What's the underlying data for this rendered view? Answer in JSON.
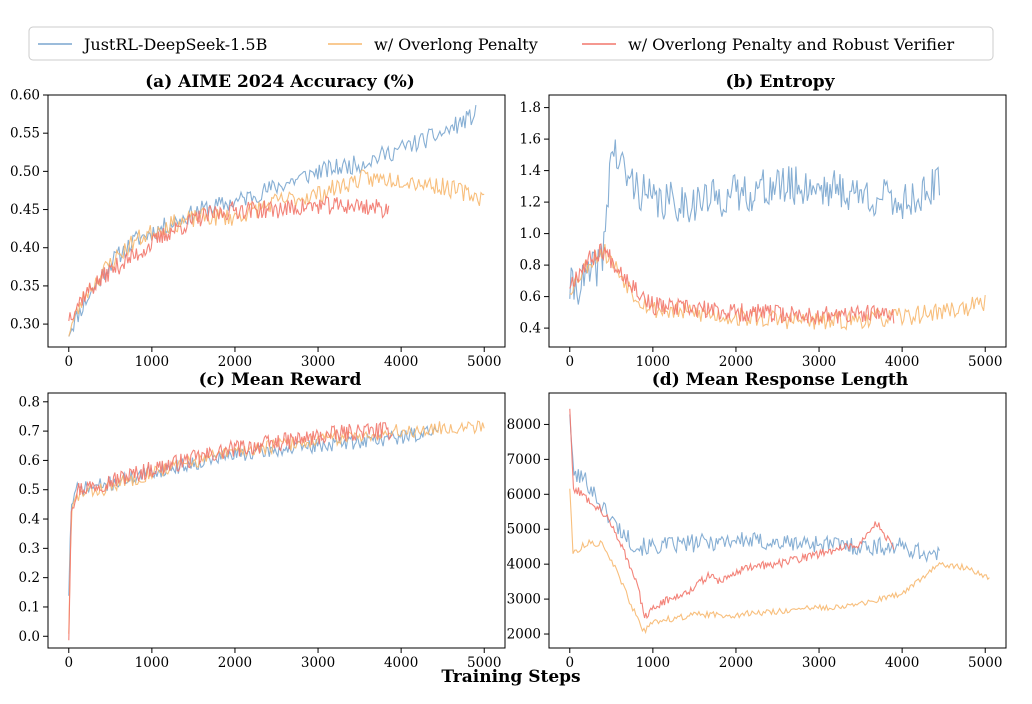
{
  "legend": [
    {
      "label": "JustRL-DeepSeek-1.5B",
      "color": "#7aa6cf"
    },
    {
      "label": "w/ Overlong Penalty",
      "color": "#f7b86f"
    },
    {
      "label": "w/ Overlong Penalty and Robust Verifier",
      "color": "#f2776b"
    }
  ],
  "xlabel": "Training Steps",
  "chart_data": [
    {
      "type": "line",
      "title": "(a) AIME 2024 Accuracy (%)",
      "xlim": [
        -250,
        5250
      ],
      "ylim": [
        0.27,
        0.6
      ],
      "xticks": [
        0,
        1000,
        2000,
        3000,
        4000,
        5000
      ],
      "yticks": [
        0.3,
        0.35,
        0.4,
        0.45,
        0.5,
        0.55,
        0.6
      ],
      "ydecimals": 2,
      "series": [
        {
          "name": "JustRL-DeepSeek-1.5B",
          "color": "#7aa6cf",
          "noise": 0.012,
          "seed": 11,
          "points": [
            [
              0,
              0.29
            ],
            [
              200,
              0.33
            ],
            [
              500,
              0.38
            ],
            [
              800,
              0.41
            ],
            [
              1200,
              0.43
            ],
            [
              1600,
              0.45
            ],
            [
              2000,
              0.46
            ],
            [
              2500,
              0.48
            ],
            [
              3000,
              0.5
            ],
            [
              3500,
              0.51
            ],
            [
              4000,
              0.53
            ],
            [
              4500,
              0.55
            ],
            [
              4900,
              0.575
            ]
          ]
        },
        {
          "name": "w/ Overlong Penalty",
          "color": "#f7b86f",
          "noise": 0.012,
          "seed": 23,
          "points": [
            [
              0,
              0.29
            ],
            [
              200,
              0.34
            ],
            [
              500,
              0.38
            ],
            [
              800,
              0.41
            ],
            [
              1200,
              0.43
            ],
            [
              1600,
              0.44
            ],
            [
              2000,
              0.44
            ],
            [
              2500,
              0.46
            ],
            [
              3000,
              0.47
            ],
            [
              3500,
              0.49
            ],
            [
              4000,
              0.49
            ],
            [
              4500,
              0.48
            ],
            [
              5000,
              0.465
            ]
          ]
        },
        {
          "name": "w/ Overlong Penalty and Robust Verifier",
          "color": "#f2776b",
          "noise": 0.012,
          "seed": 37,
          "points": [
            [
              0,
              0.31
            ],
            [
              200,
              0.34
            ],
            [
              500,
              0.37
            ],
            [
              800,
              0.39
            ],
            [
              1200,
              0.42
            ],
            [
              1600,
              0.44
            ],
            [
              2000,
              0.45
            ],
            [
              2500,
              0.45
            ],
            [
              3000,
              0.455
            ],
            [
              3500,
              0.455
            ],
            [
              3850,
              0.45
            ]
          ]
        }
      ]
    },
    {
      "type": "line",
      "title": "(b) Entropy",
      "xlim": [
        -250,
        5250
      ],
      "ylim": [
        0.28,
        1.88
      ],
      "xticks": [
        0,
        1000,
        2000,
        3000,
        4000,
        5000
      ],
      "yticks": [
        0.4,
        0.6,
        0.8,
        1.0,
        1.2,
        1.4,
        1.6,
        1.8
      ],
      "ydecimals": 1,
      "series": [
        {
          "name": "JustRL-DeepSeek-1.5B",
          "color": "#7aa6cf",
          "noise": 0.13,
          "seed": 41,
          "points": [
            [
              0,
              0.65
            ],
            [
              200,
              0.7
            ],
            [
              400,
              0.85
            ],
            [
              500,
              1.55
            ],
            [
              700,
              1.35
            ],
            [
              1000,
              1.2
            ],
            [
              1500,
              1.2
            ],
            [
              2000,
              1.25
            ],
            [
              2500,
              1.3
            ],
            [
              3000,
              1.3
            ],
            [
              3500,
              1.25
            ],
            [
              4000,
              1.2
            ],
            [
              4450,
              1.3
            ]
          ]
        },
        {
          "name": "w/ Overlong Penalty",
          "color": "#f7b86f",
          "noise": 0.06,
          "seed": 53,
          "points": [
            [
              0,
              0.65
            ],
            [
              200,
              0.8
            ],
            [
              400,
              0.9
            ],
            [
              800,
              0.6
            ],
            [
              1000,
              0.52
            ],
            [
              2000,
              0.47
            ],
            [
              3000,
              0.44
            ],
            [
              4000,
              0.47
            ],
            [
              5000,
              0.55
            ]
          ]
        },
        {
          "name": "w/ Overlong Penalty and Robust Verifier",
          "color": "#f2776b",
          "noise": 0.06,
          "seed": 67,
          "points": [
            [
              0,
              0.68
            ],
            [
              200,
              0.82
            ],
            [
              400,
              0.9
            ],
            [
              800,
              0.65
            ],
            [
              1000,
              0.54
            ],
            [
              2000,
              0.5
            ],
            [
              3000,
              0.48
            ],
            [
              3900,
              0.49
            ]
          ]
        }
      ]
    },
    {
      "type": "line",
      "title": "(c) Mean Reward",
      "xlim": [
        -250,
        5250
      ],
      "ylim": [
        -0.04,
        0.83
      ],
      "xticks": [
        0,
        1000,
        2000,
        3000,
        4000,
        5000
      ],
      "yticks": [
        0.0,
        0.1,
        0.2,
        0.3,
        0.4,
        0.5,
        0.6,
        0.7,
        0.8
      ],
      "ydecimals": 1,
      "series": [
        {
          "name": "JustRL-DeepSeek-1.5B",
          "color": "#7aa6cf",
          "noise": 0.025,
          "seed": 71,
          "points": [
            [
              0,
              0.15
            ],
            [
              30,
              0.45
            ],
            [
              100,
              0.5
            ],
            [
              500,
              0.52
            ],
            [
              1000,
              0.56
            ],
            [
              1500,
              0.59
            ],
            [
              2000,
              0.62
            ],
            [
              3000,
              0.65
            ],
            [
              4000,
              0.68
            ],
            [
              4450,
              0.7
            ]
          ]
        },
        {
          "name": "w/ Overlong Penalty",
          "color": "#f7b86f",
          "noise": 0.025,
          "seed": 83,
          "points": [
            [
              0,
              0.02
            ],
            [
              30,
              0.42
            ],
            [
              100,
              0.48
            ],
            [
              500,
              0.51
            ],
            [
              1000,
              0.56
            ],
            [
              2000,
              0.63
            ],
            [
              3000,
              0.67
            ],
            [
              4000,
              0.7
            ],
            [
              5000,
              0.72
            ]
          ]
        },
        {
          "name": "w/ Overlong Penalty and Robust Verifier",
          "color": "#f2776b",
          "noise": 0.03,
          "seed": 97,
          "points": [
            [
              0,
              0.0
            ],
            [
              30,
              0.44
            ],
            [
              100,
              0.5
            ],
            [
              500,
              0.53
            ],
            [
              1000,
              0.57
            ],
            [
              2000,
              0.64
            ],
            [
              3000,
              0.68
            ],
            [
              3500,
              0.7
            ],
            [
              3900,
              0.7
            ]
          ]
        }
      ]
    },
    {
      "type": "line",
      "title": "(d) Mean Response Length",
      "xlim": [
        -250,
        5250
      ],
      "ylim": [
        1600,
        8900
      ],
      "xticks": [
        0,
        1000,
        2000,
        3000,
        4000,
        5000
      ],
      "yticks": [
        2000,
        3000,
        4000,
        5000,
        6000,
        7000,
        8000
      ],
      "ydecimals": 0,
      "series": [
        {
          "name": "JustRL-DeepSeek-1.5B",
          "color": "#7aa6cf",
          "noise": 260,
          "seed": 101,
          "points": [
            [
              0,
              8400
            ],
            [
              40,
              6600
            ],
            [
              200,
              6400
            ],
            [
              400,
              5600
            ],
            [
              600,
              5000
            ],
            [
              800,
              4500
            ],
            [
              1000,
              4500
            ],
            [
              1500,
              4600
            ],
            [
              2000,
              4700
            ],
            [
              2500,
              4600
            ],
            [
              3000,
              4600
            ],
            [
              3500,
              4500
            ],
            [
              4000,
              4500
            ],
            [
              4450,
              4200
            ]
          ]
        },
        {
          "name": "w/ Overlong Penalty",
          "color": "#f7b86f",
          "noise": 90,
          "seed": 113,
          "points": [
            [
              0,
              6200
            ],
            [
              40,
              4300
            ],
            [
              200,
              4600
            ],
            [
              400,
              4600
            ],
            [
              600,
              3600
            ],
            [
              800,
              2500
            ],
            [
              900,
              2050
            ],
            [
              1000,
              2350
            ],
            [
              1500,
              2550
            ],
            [
              2000,
              2550
            ],
            [
              2500,
              2650
            ],
            [
              3000,
              2750
            ],
            [
              3500,
              2850
            ],
            [
              4000,
              3150
            ],
            [
              4450,
              4000
            ],
            [
              4800,
              3900
            ],
            [
              5050,
              3600
            ]
          ]
        },
        {
          "name": "w/ Overlong Penalty and Robust Verifier",
          "color": "#f2776b",
          "noise": 120,
          "seed": 127,
          "points": [
            [
              0,
              8500
            ],
            [
              40,
              6200
            ],
            [
              200,
              5900
            ],
            [
              400,
              5500
            ],
            [
              600,
              4700
            ],
            [
              800,
              3500
            ],
            [
              900,
              2500
            ],
            [
              1100,
              2900
            ],
            [
              1400,
              3200
            ],
            [
              1700,
              3700
            ],
            [
              1800,
              3500
            ],
            [
              2100,
              3900
            ],
            [
              2500,
              4000
            ],
            [
              3000,
              4300
            ],
            [
              3500,
              4600
            ],
            [
              3700,
              5200
            ],
            [
              3900,
              4400
            ]
          ]
        }
      ]
    }
  ]
}
